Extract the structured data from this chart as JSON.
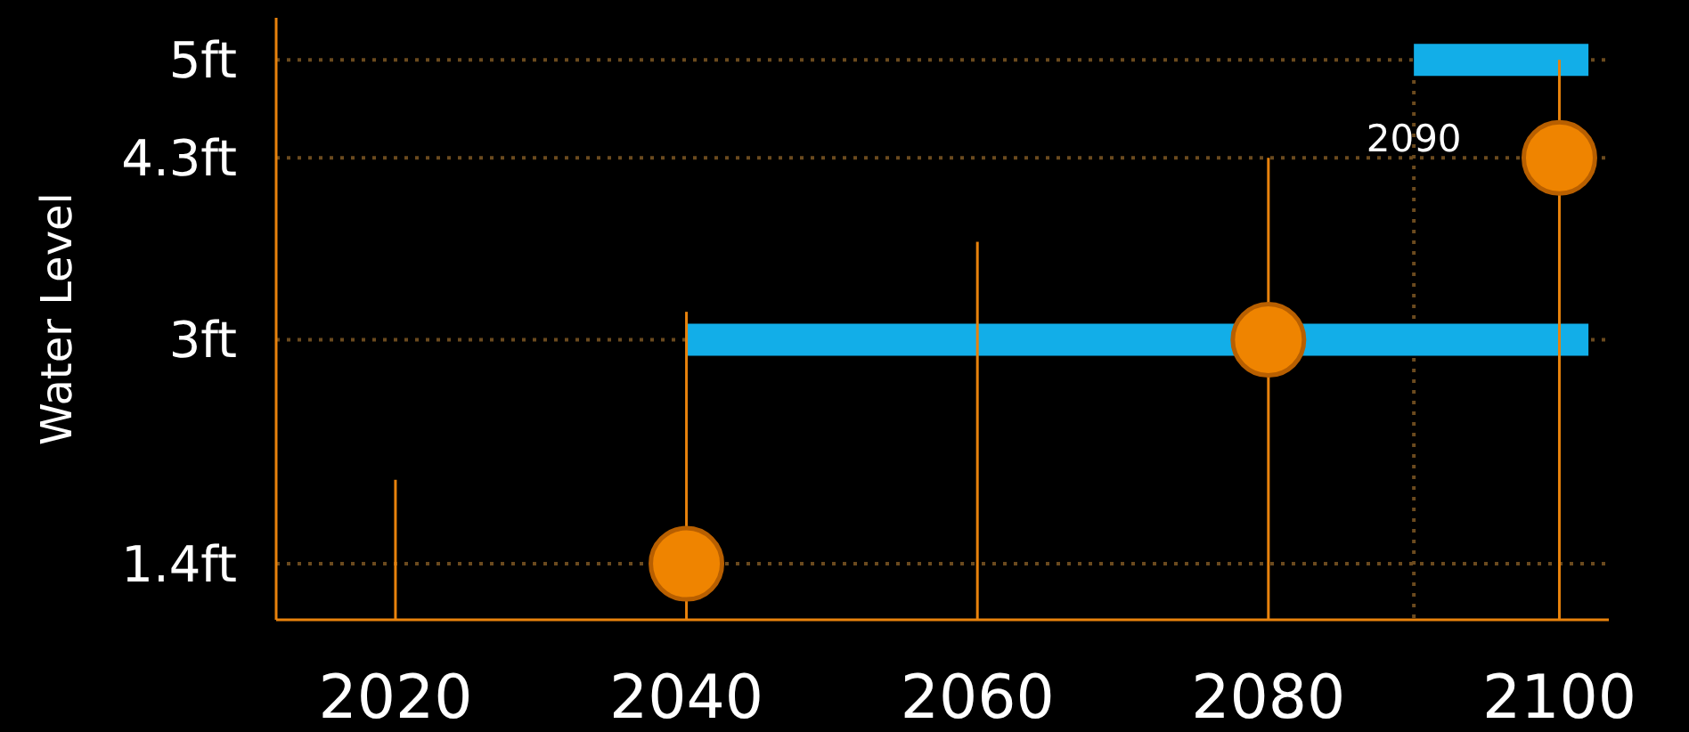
{
  "chart_data": {
    "type": "scatter",
    "ylabel": "Water Level",
    "xlim": [
      2011.8,
      2103.4
    ],
    "ylim": [
      1,
      5.3
    ],
    "xticks": [
      2020,
      2040,
      2060,
      2080,
      2100
    ],
    "yticks": [
      {
        "value": 1.4,
        "label": "1.4ft"
      },
      {
        "value": 3,
        "label": "3ft"
      },
      {
        "value": 4.3,
        "label": "4.3ft"
      },
      {
        "value": 5,
        "label": "5ft"
      }
    ],
    "grid": "y",
    "series": [
      {
        "type": "bar",
        "color": "#e8820c",
        "x": [
          2020,
          2040,
          2060,
          2080,
          2100
        ],
        "values": [
          2.0,
          3.2,
          3.7,
          4.3,
          5
        ]
      },
      {
        "type": "line",
        "color": "#12aee8",
        "x": [
          2040,
          2102
        ],
        "values": [
          3,
          3
        ],
        "marker": "none"
      },
      {
        "type": "line",
        "color": "#12aee8",
        "x": [
          2090,
          2102
        ],
        "values": [
          5,
          5
        ],
        "marker": "none"
      },
      {
        "color": "#ef8400",
        "x": [
          2040,
          2080,
          2100
        ],
        "values": [
          1.4,
          3,
          4.3
        ],
        "marker": "circle"
      }
    ],
    "ref_lines": [
      {
        "axis": "x",
        "value": 2090,
        "label": "2090",
        "line_style": "dotted",
        "color": "#6b4a1e"
      }
    ]
  }
}
